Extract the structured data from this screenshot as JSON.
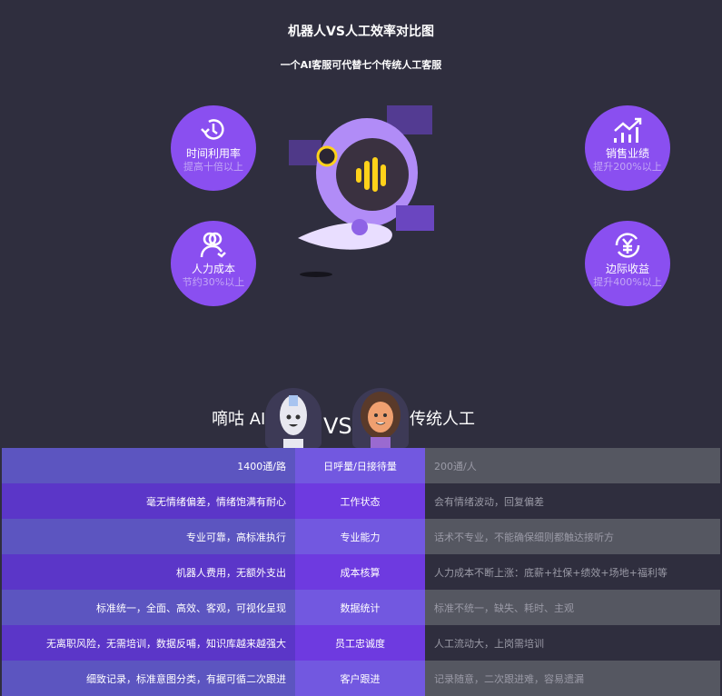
{
  "header": {
    "title": "机器人VS人工效率对比图",
    "subtitle": "一个AI客服可代替七个传统人工客服"
  },
  "features": [
    {
      "icon": "clock-icon",
      "label": "时间利用率",
      "sub": "提高十倍以上"
    },
    {
      "icon": "people-icon",
      "label": "人力成本",
      "sub": "节约30%以上"
    },
    {
      "icon": "chart-up-icon",
      "label": "销售业绩",
      "sub": "提升200%以上"
    },
    {
      "icon": "yuan-cycle-icon",
      "label": "边际收益",
      "sub": "提升400%以上"
    }
  ],
  "versus": {
    "ai": "嘀咕 AI",
    "vs": "VS",
    "human": "传统人工"
  },
  "colors": {
    "background": "#2f2e3e",
    "circle": "#8a4ff0"
  },
  "rows": [
    {
      "ai": "1400通/路",
      "metric": "日呼量/日接待量",
      "human": "200通/人"
    },
    {
      "ai": "毫无情绪偏差，情绪饱满有耐心",
      "metric": "工作状态",
      "human": "会有情绪波动，回复偏差"
    },
    {
      "ai": "专业可靠，高标准执行",
      "metric": "专业能力",
      "human": "话术不专业，不能确保细则都触达接听方"
    },
    {
      "ai": "机器人费用，无额外支出",
      "metric": "成本核算",
      "human": "人力成本不断上涨：底薪+社保+绩效+场地+福利等"
    },
    {
      "ai": "标准统一，全面、高效、客观，可视化呈现",
      "metric": "数据统计",
      "human": "标准不统一，缺失、耗时、主观"
    },
    {
      "ai": "无离职风险，无需培训，数据反哺，知识库越来越强大",
      "metric": "员工忠诚度",
      "human": "人工流动大，上岗需培训"
    },
    {
      "ai": "细致记录，标准意图分类，有据可循二次跟进",
      "metric": "客户跟进",
      "human": "记录随意，二次跟进难，容易遗漏"
    }
  ]
}
